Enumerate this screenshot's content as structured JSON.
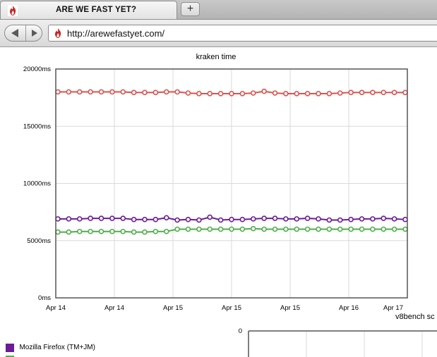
{
  "browser": {
    "tab_title": "ARE WE FAST YET?",
    "new_tab_label": "+",
    "url": "http://arewefastyet.com/"
  },
  "colors": {
    "firefox": "#6c1b96",
    "chrome": "#4fae4a",
    "safari": "#d9534f",
    "grid": "#d9d9d9",
    "favicon": "#c62828"
  },
  "chart_data": [
    {
      "type": "line",
      "title": "kraken time",
      "xlabel": "",
      "ylabel": "",
      "ylim": [
        0,
        20000
      ],
      "y_ticks": [
        "0ms",
        "5000ms",
        "10000ms",
        "15000ms",
        "20000ms"
      ],
      "x_ticks": [
        "Apr 14",
        "Apr 14",
        "Apr 15",
        "Apr 15",
        "Apr 15",
        "Apr 16",
        "Apr 17"
      ],
      "grid": true,
      "series": [
        {
          "key": "safari",
          "values": [
            18000,
            18000,
            18000,
            18000,
            18000,
            18000,
            18000,
            17950,
            17950,
            17950,
            18000,
            18000,
            17900,
            17850,
            17850,
            17850,
            17850,
            17850,
            17900,
            18050,
            17900,
            17850,
            17850,
            17850,
            17850,
            17850,
            17900,
            17950,
            17950,
            17950,
            17950,
            17950,
            17950
          ]
        },
        {
          "key": "firefox",
          "values": [
            6900,
            6900,
            6900,
            6950,
            6950,
            6950,
            6950,
            6850,
            6850,
            6850,
            7000,
            6800,
            6850,
            6800,
            7050,
            6800,
            6850,
            6850,
            6900,
            6950,
            6950,
            6900,
            6900,
            6950,
            6900,
            6800,
            6800,
            6850,
            6900,
            6900,
            6950,
            6900,
            6850
          ]
        },
        {
          "key": "chrome",
          "values": [
            5750,
            5750,
            5800,
            5800,
            5800,
            5800,
            5800,
            5750,
            5750,
            5800,
            5800,
            6000,
            6000,
            6000,
            6000,
            6000,
            6000,
            6000,
            6050,
            6000,
            6000,
            6000,
            6000,
            6000,
            6000,
            6000,
            6000,
            6000,
            6000,
            6000,
            6000,
            6000,
            6000
          ]
        }
      ]
    },
    {
      "type": "line",
      "title": "v8bench sc",
      "y_ticks": [
        "0"
      ],
      "grid": true,
      "series": []
    }
  ],
  "legend": [
    {
      "key": "firefox",
      "label": "Mozilla Firefox (TM+JM)"
    }
  ]
}
